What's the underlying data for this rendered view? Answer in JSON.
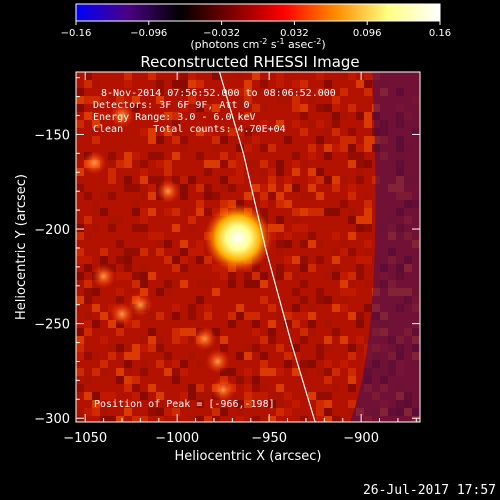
{
  "colorbar": {
    "ticks": [
      "-0.16",
      "-0.096",
      "-0.032",
      "0.032",
      "0.096",
      "0.16"
    ],
    "units_main": "(photons cm",
    "units_sup1": "-2",
    "units_mid1": " s",
    "units_sup2": "-1",
    "units_mid2": " asec",
    "units_sup3": "-2",
    "units_end": ")",
    "gradient": [
      "#0000ff",
      "#4b0082",
      "#000000",
      "#7f0000",
      "#ff0000",
      "#ff8c00",
      "#ffff80",
      "#ffffff"
    ]
  },
  "chart_data": {
    "type": "heatmap",
    "title": "Reconstructed RHESSI Image",
    "xlabel": "Heliocentric X (arcsec)",
    "ylabel": "Heliocentric Y (arcsec)",
    "xlim": [
      -1055,
      -868
    ],
    "ylim": [
      -302,
      -117
    ],
    "x_ticks": [
      -1050,
      -1000,
      -950,
      -900
    ],
    "y_ticks": [
      -150,
      -200,
      -250,
      -300
    ],
    "x_tick_labels": [
      "−1050",
      "−1000",
      "−950",
      "−900"
    ],
    "y_tick_labels": [
      "−150",
      "−200",
      "−250",
      "−300"
    ],
    "annotations": [
      "8-Nov-2014 07:56:52.000 to 08:06:52.000",
      "Detectors: 3F 6F 9F, Att 0",
      "Energy Range: 3.0 - 6.0 keV",
      "Clean     Total counts: 4.70E+04"
    ],
    "peak_label": "Position of Peak = [-966,-198]",
    "peak": [
      -966,
      -198
    ],
    "limb_curve": [
      [
        -977,
        -117
      ],
      [
        -964,
        -160
      ],
      [
        -952,
        -210
      ],
      [
        -938,
        -260
      ],
      [
        -925,
        -302
      ]
    ]
  },
  "footer": {
    "timestamp": "26-Jul-2017 17:57"
  }
}
